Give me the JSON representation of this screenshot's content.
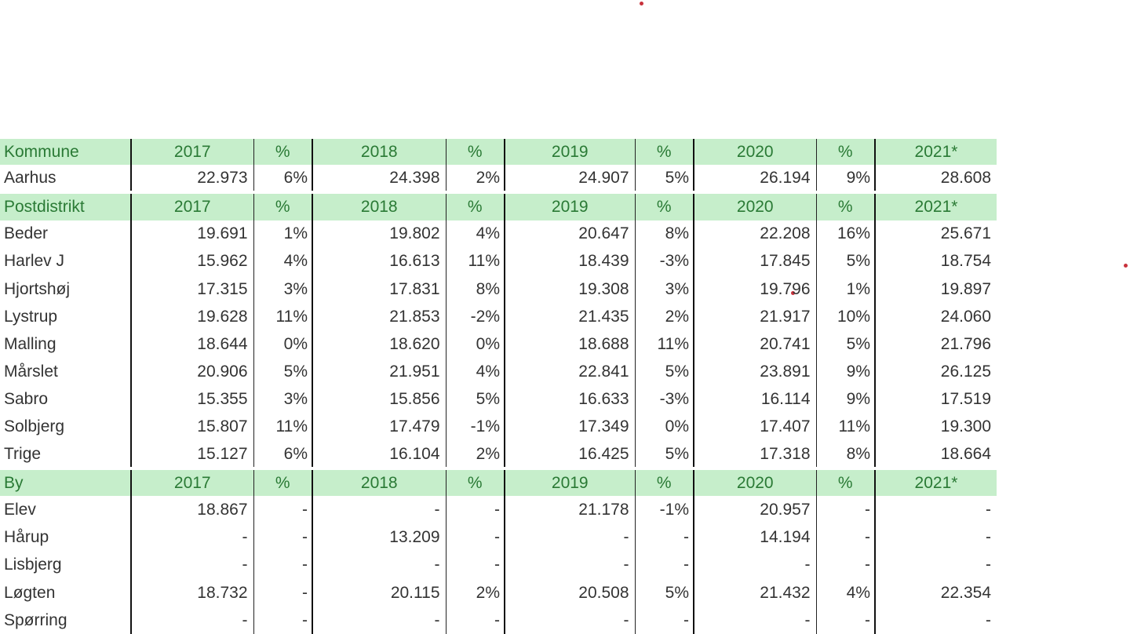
{
  "columns": [
    "2017",
    "%",
    "2018",
    "%",
    "2019",
    "%",
    "2020",
    "%",
    "2021*"
  ],
  "sections": [
    {
      "header": "Kommune",
      "rows": [
        {
          "name": "Aarhus",
          "values": [
            "22.973",
            "6%",
            "24.398",
            "2%",
            "24.907",
            "5%",
            "26.194",
            "9%",
            "28.608"
          ]
        }
      ]
    },
    {
      "header": "Postdistrikt",
      "rows": [
        {
          "name": "Beder",
          "values": [
            "19.691",
            "1%",
            "19.802",
            "4%",
            "20.647",
            "8%",
            "22.208",
            "16%",
            "25.671"
          ]
        },
        {
          "name": "Harlev J",
          "values": [
            "15.962",
            "4%",
            "16.613",
            "11%",
            "18.439",
            "-3%",
            "17.845",
            "5%",
            "18.754"
          ]
        },
        {
          "name": "Hjortshøj",
          "values": [
            "17.315",
            "3%",
            "17.831",
            "8%",
            "19.308",
            "3%",
            "19.796",
            "1%",
            "19.897"
          ]
        },
        {
          "name": "Lystrup",
          "values": [
            "19.628",
            "11%",
            "21.853",
            "-2%",
            "21.435",
            "2%",
            "21.917",
            "10%",
            "24.060"
          ]
        },
        {
          "name": "Malling",
          "values": [
            "18.644",
            "0%",
            "18.620",
            "0%",
            "18.688",
            "11%",
            "20.741",
            "5%",
            "21.796"
          ]
        },
        {
          "name": "Mårslet",
          "values": [
            "20.906",
            "5%",
            "21.951",
            "4%",
            "22.841",
            "5%",
            "23.891",
            "9%",
            "26.125"
          ]
        },
        {
          "name": "Sabro",
          "values": [
            "15.355",
            "3%",
            "15.856",
            "5%",
            "16.633",
            "-3%",
            "16.114",
            "9%",
            "17.519"
          ]
        },
        {
          "name": "Solbjerg",
          "values": [
            "15.807",
            "11%",
            "17.479",
            "-1%",
            "17.349",
            "0%",
            "17.407",
            "11%",
            "19.300"
          ]
        },
        {
          "name": "Trige",
          "values": [
            "15.127",
            "6%",
            "16.104",
            "2%",
            "16.425",
            "5%",
            "17.318",
            "8%",
            "18.664"
          ]
        }
      ]
    },
    {
      "header": "By",
      "rows": [
        {
          "name": "Elev",
          "values": [
            "18.867",
            "-",
            "-",
            "-",
            "21.178",
            "-1%",
            "20.957",
            "-",
            "-"
          ]
        },
        {
          "name": "Hårup",
          "values": [
            "-",
            "-",
            "13.209",
            "-",
            "-",
            "-",
            "14.194",
            "-",
            "-"
          ]
        },
        {
          "name": "Lisbjerg",
          "values": [
            "-",
            "-",
            "-",
            "-",
            "-",
            "-",
            "-",
            "-",
            "-"
          ]
        },
        {
          "name": "Løgten",
          "values": [
            "18.732",
            "-",
            "20.115",
            "2%",
            "20.508",
            "5%",
            "21.432",
            "4%",
            "22.354"
          ]
        },
        {
          "name": "Spørring",
          "values": [
            "-",
            "-",
            "-",
            "-",
            "-",
            "-",
            "-",
            "-",
            "-"
          ]
        }
      ]
    }
  ],
  "colors": {
    "header_bg": "#c6eecb",
    "header_text": "#2a7a35",
    "cell_text": "#333333",
    "cursor_dot": "#c8323c"
  }
}
